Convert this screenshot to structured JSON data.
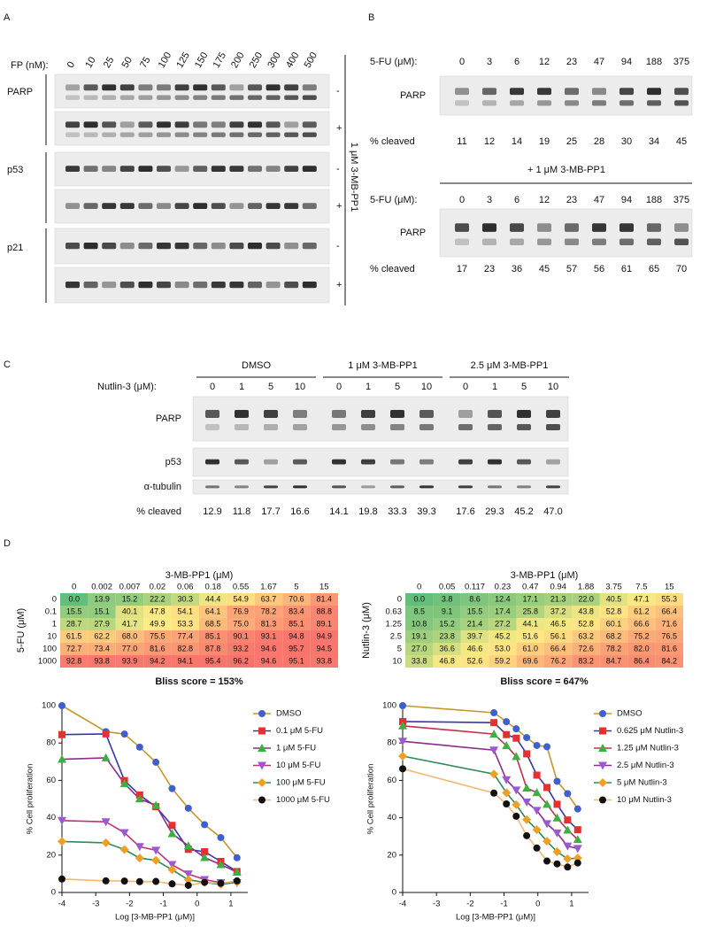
{
  "panel_a": {
    "label": "A",
    "dose_label": "FP (nM):",
    "doses": [
      0,
      10,
      25,
      50,
      75,
      100,
      125,
      150,
      175,
      200,
      250,
      300,
      400,
      500
    ],
    "proteins": [
      "PARP",
      "p53",
      "p21"
    ],
    "conditions": [
      "-",
      "+"
    ],
    "side_label": "1 μM 3-MB-PP1"
  },
  "panel_b": {
    "label": "B",
    "blots": [
      {
        "dose_label": "5-FU (μM):",
        "doses": [
          0,
          3,
          6,
          12,
          23,
          47,
          94,
          188,
          375
        ],
        "protein": "PARP",
        "cleaved_label": "% cleaved",
        "cleaved": [
          11,
          12,
          14,
          19,
          25,
          28,
          30,
          34,
          45
        ]
      },
      {
        "header": "+ 1 μM 3-MB-PP1",
        "dose_label": "5-FU (μM):",
        "doses": [
          0,
          3,
          6,
          12,
          23,
          47,
          94,
          188,
          375
        ],
        "protein": "PARP",
        "cleaved_label": "% cleaved",
        "cleaved": [
          17,
          23,
          36,
          45,
          57,
          56,
          61,
          65,
          70
        ]
      }
    ]
  },
  "panel_c": {
    "label": "C",
    "groups": [
      "DMSO",
      "1 μM 3-MB-PP1",
      "2.5 μM 3-MB-PP1"
    ],
    "dose_label": "Nutlin-3 (μM):",
    "doses": [
      0,
      1,
      5,
      10,
      0,
      1,
      5,
      10,
      0,
      1,
      5,
      10
    ],
    "proteins": [
      "PARP",
      "p53",
      "α-tubulin"
    ],
    "cleaved_label": "% cleaved",
    "cleaved": [
      "12.9",
      "11.8",
      "17.7",
      "16.6",
      "14.1",
      "19.8",
      "33.3",
      "39.3",
      "17.6",
      "29.3",
      "45.2",
      "47.0"
    ]
  },
  "panel_d": {
    "label": "D",
    "heatmaps": [
      {
        "col_title": "3-MB-PP1 (μM)",
        "columns": [
          0,
          0.002,
          0.007,
          0.02,
          0.06,
          0.18,
          0.55,
          1.67,
          5,
          15
        ],
        "row_title": "5-FU (μM)",
        "rows": [
          0,
          0.1,
          1,
          10,
          100,
          1000
        ],
        "cells": [
          [
            "0.0",
            "13.9",
            "15.2",
            "22.2",
            "30.3",
            "44.4",
            "54.9",
            "63.7",
            "70.6",
            "81.4"
          ],
          [
            "15.5",
            "15.1",
            "40.1",
            "47.8",
            "54.1",
            "64.1",
            "76.9",
            "78.2",
            "83.4",
            "88.8"
          ],
          [
            "28.7",
            "27.9",
            "41.7",
            "49.9",
            "53.3",
            "68.5",
            "75.0",
            "81.3",
            "85.1",
            "89.1"
          ],
          [
            "61.5",
            "62.2",
            "68.0",
            "75.5",
            "77.4",
            "85.1",
            "90.1",
            "93.1",
            "94.8",
            "94.9"
          ],
          [
            "72.7",
            "73.4",
            "77.0",
            "81.6",
            "82.8",
            "87.8",
            "93.2",
            "94.6",
            "95.7",
            "94.5"
          ],
          [
            "92.8",
            "93.8",
            "93.9",
            "94.2",
            "94.1",
            "95.4",
            "96.2",
            "94.6",
            "95.1",
            "93.8"
          ]
        ],
        "score": "Bliss score = 153%"
      },
      {
        "col_title": "3-MB-PP1 (μM)",
        "columns": [
          0,
          0.05,
          0.117,
          0.23,
          0.47,
          0.94,
          1.88,
          3.75,
          7.5,
          15
        ],
        "row_title": "Nutlin-3 (μM)",
        "rows": [
          0,
          0.63,
          1.25,
          2.5,
          5,
          10
        ],
        "cells": [
          [
            "0.0",
            "3.8",
            "8.6",
            "12.4",
            "17.1",
            "21.3",
            "22.0",
            "40.5",
            "47.1",
            "55.3"
          ],
          [
            "8.5",
            "9.1",
            "15.5",
            "17.4",
            "25.8",
            "37.2",
            "43.8",
            "52.8",
            "61.2",
            "66.4"
          ],
          [
            "10.8",
            "15.2",
            "21.4",
            "27.2",
            "44.1",
            "46.5",
            "52.8",
            "60.1",
            "66.6",
            "71.6"
          ],
          [
            "19.1",
            "23.8",
            "39.7",
            "45.2",
            "51.6",
            "56.1",
            "63.2",
            "68.2",
            "75.2",
            "76.5"
          ],
          [
            "27.0",
            "36.6",
            "46.6",
            "53.0",
            "61.0",
            "66.4",
            "72.6",
            "78.2",
            "82.0",
            "81.6"
          ],
          [
            "33.8",
            "46.8",
            "52.6",
            "59.2",
            "69.6",
            "76.2",
            "83.2",
            "84.7",
            "86.4",
            "84.2"
          ]
        ],
        "score": "Bliss score = 647%"
      }
    ]
  },
  "chart_data": [
    {
      "type": "scatter",
      "x_label": "Log [3-MB-PP1 (μM)]",
      "y_label": "% Cell proliferation",
      "xlim": [
        -4,
        1.5
      ],
      "ylim": [
        0,
        100
      ],
      "xticks": [
        -4,
        -3,
        -2,
        -1,
        0,
        1
      ],
      "yticks": [
        0,
        20,
        40,
        60,
        80,
        100
      ],
      "legend": "right",
      "x": [
        -4,
        -2.7,
        -2.15,
        -1.7,
        -1.22,
        -0.74,
        -0.26,
        0.22,
        0.7,
        1.18
      ],
      "series": [
        {
          "name": "DMSO",
          "color": "#3f5fcf",
          "line_color": "#c8962a",
          "marker": "circle",
          "values": [
            100,
            86.1,
            84.8,
            77.8,
            69.7,
            55.6,
            45.1,
            36.3,
            29.4,
            18.6
          ]
        },
        {
          "name": "0.1 μM 5-FU",
          "color": "#e53030",
          "line_color": "#3535b0",
          "marker": "square",
          "values": [
            84.5,
            84.9,
            59.9,
            52.2,
            45.9,
            35.9,
            23.1,
            21.8,
            16.6,
            11.2
          ]
        },
        {
          "name": "1 μM 5-FU",
          "color": "#3cb043",
          "line_color": "#8a2e8a",
          "marker": "triangle",
          "values": [
            71.3,
            72.1,
            58.3,
            50.1,
            46.7,
            31.5,
            25.0,
            18.7,
            14.9,
            10.9
          ]
        },
        {
          "name": "10 μM 5-FU",
          "color": "#9b59d0",
          "line_color": "#c0307a",
          "marker": "triangle-down",
          "values": [
            38.5,
            37.8,
            32.0,
            24.5,
            22.6,
            14.9,
            9.9,
            6.9,
            5.2,
            5.1
          ]
        },
        {
          "name": "100 μM 5-FU",
          "color": "#f0a020",
          "line_color": "#2e8b57",
          "marker": "diamond",
          "values": [
            27.3,
            26.6,
            23.0,
            18.4,
            17.2,
            12.2,
            6.8,
            5.4,
            4.3,
            5.5
          ]
        },
        {
          "name": "1000 μM 5-FU",
          "color": "#111111",
          "line_color": "#f5b870",
          "marker": "circle",
          "values": [
            7.2,
            6.2,
            6.1,
            5.8,
            5.9,
            4.6,
            3.8,
            5.4,
            4.9,
            6.2
          ]
        }
      ]
    },
    {
      "type": "scatter",
      "x_label": "Log [3-MB-PP1 (μM)]",
      "y_label": "% Cell proliferation",
      "xlim": [
        -4,
        1.5
      ],
      "ylim": [
        0,
        100
      ],
      "xticks": [
        -4,
        -3,
        -2,
        -1,
        0,
        1
      ],
      "yticks": [
        0,
        20,
        40,
        60,
        80,
        100
      ],
      "legend": "right",
      "x": [
        -4,
        -1.3,
        -0.93,
        -0.64,
        -0.33,
        -0.03,
        0.27,
        0.57,
        0.88,
        1.18
      ],
      "series": [
        {
          "name": "DMSO",
          "color": "#3f5fcf",
          "line_color": "#c8962a",
          "marker": "circle",
          "values": [
            100,
            96.2,
            91.4,
            87.6,
            82.9,
            78.7,
            78.0,
            59.5,
            52.9,
            44.7
          ]
        },
        {
          "name": "0.625 μM Nutlin-3",
          "color": "#e53030",
          "line_color": "#3535b0",
          "marker": "square",
          "values": [
            91.5,
            90.9,
            84.5,
            82.6,
            74.2,
            62.8,
            56.2,
            47.2,
            38.8,
            33.6
          ]
        },
        {
          "name": "1.25 μM Nutlin-3",
          "color": "#3cb043",
          "line_color": "#c0304a",
          "marker": "triangle",
          "values": [
            89.2,
            84.8,
            78.6,
            72.8,
            55.9,
            53.5,
            47.2,
            39.9,
            33.4,
            28.4
          ]
        },
        {
          "name": "2.5 μM Nutlin-3",
          "color": "#9b59d0",
          "line_color": "#8a2e8a",
          "marker": "triangle-down",
          "values": [
            80.9,
            76.2,
            60.3,
            54.8,
            48.4,
            43.9,
            36.8,
            31.8,
            24.8,
            23.5
          ]
        },
        {
          "name": "5 μM Nutlin-3",
          "color": "#f0a020",
          "line_color": "#2e8b57",
          "marker": "diamond",
          "values": [
            73.0,
            63.4,
            53.4,
            47.0,
            39.0,
            33.6,
            27.4,
            21.8,
            18.0,
            18.4
          ]
        },
        {
          "name": "10 μM Nutlin-3",
          "color": "#111111",
          "line_color": "#f5b870",
          "marker": "circle",
          "values": [
            66.2,
            53.2,
            47.4,
            40.8,
            30.4,
            23.8,
            16.8,
            15.3,
            13.6,
            15.8
          ]
        }
      ]
    }
  ]
}
